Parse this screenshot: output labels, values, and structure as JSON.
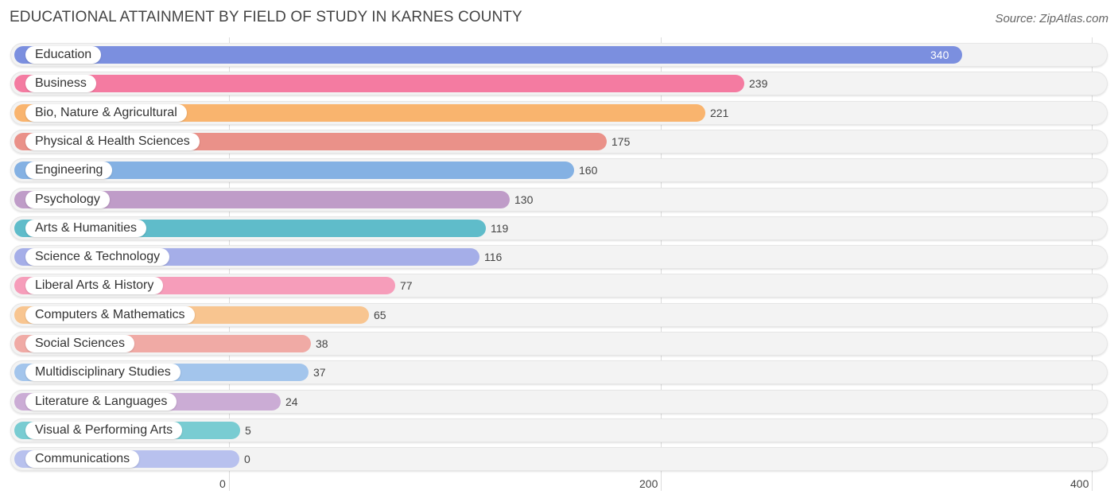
{
  "title": "EDUCATIONAL ATTAINMENT BY FIELD OF STUDY IN KARNES COUNTY",
  "source": "Source: ZipAtlas.com",
  "chart_data": {
    "type": "bar",
    "orientation": "horizontal",
    "title": "EDUCATIONAL ATTAINMENT BY FIELD OF STUDY IN KARNES COUNTY",
    "categories": [
      "Education",
      "Business",
      "Bio, Nature & Agricultural",
      "Physical & Health Sciences",
      "Engineering",
      "Psychology",
      "Arts & Humanities",
      "Science & Technology",
      "Liberal Arts & History",
      "Computers & Mathematics",
      "Social Sciences",
      "Multidisciplinary Studies",
      "Literature & Languages",
      "Visual & Performing Arts",
      "Communications"
    ],
    "values": [
      340,
      239,
      221,
      175,
      160,
      130,
      119,
      116,
      77,
      65,
      38,
      37,
      24,
      5,
      0
    ],
    "colors": [
      "#7b8fdf",
      "#f47ba1",
      "#f9b46e",
      "#ea9189",
      "#84b1e3",
      "#bf9cc8",
      "#5fbcca",
      "#a5aee8",
      "#f69dba",
      "#f8c590",
      "#f0aaa5",
      "#a3c5ec",
      "#cbacd5",
      "#79ccd2",
      "#b8c1ee"
    ],
    "xticks": [
      "0",
      "200",
      "400"
    ],
    "xlim": [
      0,
      400
    ],
    "grid": true
  }
}
